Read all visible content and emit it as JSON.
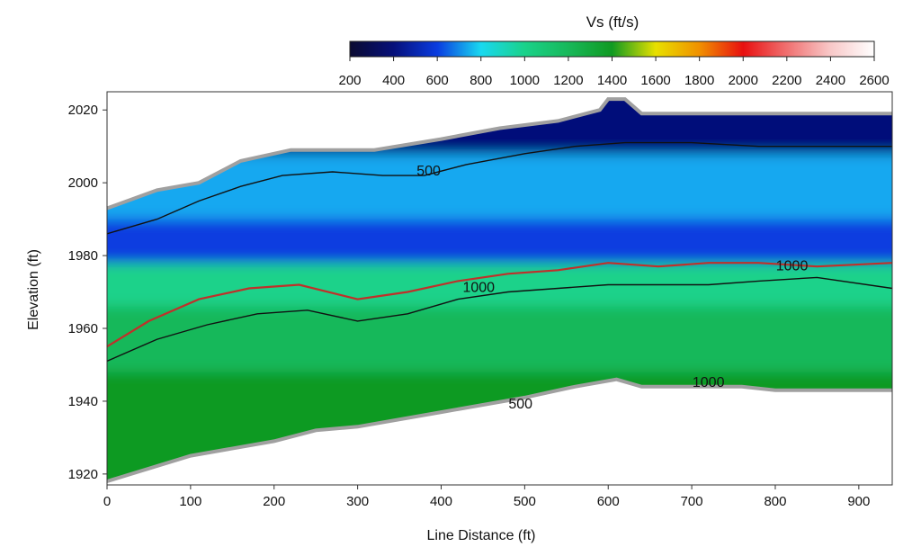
{
  "chart_data": {
    "type": "heatmap",
    "title": "",
    "xlabel": "Line Distance (ft)",
    "ylabel": "Elevation (ft)",
    "xlim": [
      0,
      940
    ],
    "ylim": [
      1917,
      2025
    ],
    "xticks": [
      0,
      100,
      200,
      300,
      400,
      500,
      600,
      700,
      800,
      900
    ],
    "yticks": [
      1920,
      1940,
      1960,
      1980,
      2000,
      2020
    ],
    "colorbar": {
      "title": "Vs (ft/s)",
      "range": [
        200,
        2600
      ],
      "ticks": [
        200,
        400,
        600,
        800,
        1000,
        1200,
        1400,
        1600,
        1800,
        2000,
        2200,
        2400,
        2600
      ],
      "stops": [
        {
          "v": 200,
          "color": "#0a0a30"
        },
        {
          "v": 400,
          "color": "#06107a"
        },
        {
          "v": 600,
          "color": "#0a3ce0"
        },
        {
          "v": 800,
          "color": "#19d8f0"
        },
        {
          "v": 1000,
          "color": "#1ad28a"
        },
        {
          "v": 1200,
          "color": "#18b85a"
        },
        {
          "v": 1400,
          "color": "#109a22"
        },
        {
          "v": 1600,
          "color": "#e8e000"
        },
        {
          "v": 1800,
          "color": "#f09000"
        },
        {
          "v": 2000,
          "color": "#e81010"
        },
        {
          "v": 2200,
          "color": "#f07070"
        },
        {
          "v": 2400,
          "color": "#f8c8c8"
        },
        {
          "v": 2600,
          "color": "#ffffff"
        }
      ]
    },
    "contour_labels": [
      {
        "text": "500",
        "x": 385,
        "y": 2002
      },
      {
        "text": "1000",
        "x": 445,
        "y": 1970
      },
      {
        "text": "1000",
        "x": 820,
        "y": 1976
      },
      {
        "text": "1000",
        "x": 720,
        "y": 1944
      },
      {
        "text": "500",
        "x": 495,
        "y": 1938
      }
    ],
    "surface_profile": [
      {
        "x": 0,
        "elev": 1993
      },
      {
        "x": 60,
        "elev": 1998
      },
      {
        "x": 110,
        "elev": 2000
      },
      {
        "x": 160,
        "elev": 2006
      },
      {
        "x": 220,
        "elev": 2009
      },
      {
        "x": 290,
        "elev": 2009
      },
      {
        "x": 320,
        "elev": 2009
      },
      {
        "x": 400,
        "elev": 2012
      },
      {
        "x": 470,
        "elev": 2015
      },
      {
        "x": 540,
        "elev": 2017
      },
      {
        "x": 590,
        "elev": 2020
      },
      {
        "x": 600,
        "elev": 2023
      },
      {
        "x": 620,
        "elev": 2023
      },
      {
        "x": 640,
        "elev": 2019
      },
      {
        "x": 700,
        "elev": 2019
      },
      {
        "x": 800,
        "elev": 2019
      },
      {
        "x": 940,
        "elev": 2019
      }
    ],
    "bottom_profile": [
      {
        "x": 0,
        "elev": 1918
      },
      {
        "x": 100,
        "elev": 1925
      },
      {
        "x": 200,
        "elev": 1929
      },
      {
        "x": 250,
        "elev": 1932
      },
      {
        "x": 300,
        "elev": 1933
      },
      {
        "x": 400,
        "elev": 1937
      },
      {
        "x": 500,
        "elev": 1941
      },
      {
        "x": 560,
        "elev": 1944
      },
      {
        "x": 610,
        "elev": 1946
      },
      {
        "x": 640,
        "elev": 1944
      },
      {
        "x": 700,
        "elev": 1944
      },
      {
        "x": 760,
        "elev": 1944
      },
      {
        "x": 800,
        "elev": 1943
      },
      {
        "x": 940,
        "elev": 1943
      }
    ],
    "layers": [
      {
        "name": "low",
        "color": "#06107a",
        "top": "surface",
        "bottom": 2008
      },
      {
        "name": "mid",
        "color": "#19a8f0",
        "top": 2008,
        "bottom": 1990
      },
      {
        "name": "blue2",
        "color": "#0a3ce0",
        "top": 1990,
        "bottom": 1978
      },
      {
        "name": "teal",
        "color": "#1ad28a",
        "top": 1978,
        "bottom": 1966
      },
      {
        "name": "green",
        "color": "#18b85a",
        "top": 1966,
        "bottom": 1948
      },
      {
        "name": "deep",
        "color": "#109a22",
        "top": 1948,
        "bottom": "base"
      }
    ],
    "velocity_contours": [
      {
        "label": "500",
        "color": "#111111",
        "points": [
          [
            0,
            1986
          ],
          [
            60,
            1990
          ],
          [
            110,
            1995
          ],
          [
            160,
            1999
          ],
          [
            210,
            2002
          ],
          [
            270,
            2003
          ],
          [
            330,
            2002
          ],
          [
            380,
            2002
          ],
          [
            430,
            2005
          ],
          [
            500,
            2008
          ],
          [
            560,
            2010
          ],
          [
            620,
            2011
          ],
          [
            700,
            2011
          ],
          [
            780,
            2010
          ],
          [
            860,
            2010
          ],
          [
            940,
            2010
          ]
        ]
      },
      {
        "label": "1000",
        "color": "#c0302a",
        "points": [
          [
            0,
            1955
          ],
          [
            50,
            1962
          ],
          [
            110,
            1968
          ],
          [
            170,
            1971
          ],
          [
            230,
            1972
          ],
          [
            300,
            1968
          ],
          [
            360,
            1970
          ],
          [
            420,
            1973
          ],
          [
            480,
            1975
          ],
          [
            540,
            1976
          ],
          [
            600,
            1978
          ],
          [
            660,
            1977
          ],
          [
            720,
            1978
          ],
          [
            780,
            1978
          ],
          [
            850,
            1977
          ],
          [
            940,
            1978
          ]
        ]
      },
      {
        "label": "1000",
        "color": "#111111",
        "points": [
          [
            0,
            1951
          ],
          [
            60,
            1957
          ],
          [
            120,
            1961
          ],
          [
            180,
            1964
          ],
          [
            240,
            1965
          ],
          [
            300,
            1962
          ],
          [
            360,
            1964
          ],
          [
            420,
            1968
          ],
          [
            480,
            1970
          ],
          [
            540,
            1971
          ],
          [
            600,
            1972
          ],
          [
            660,
            1972
          ],
          [
            720,
            1972
          ],
          [
            780,
            1973
          ],
          [
            850,
            1974
          ],
          [
            940,
            1971
          ]
        ]
      }
    ]
  }
}
